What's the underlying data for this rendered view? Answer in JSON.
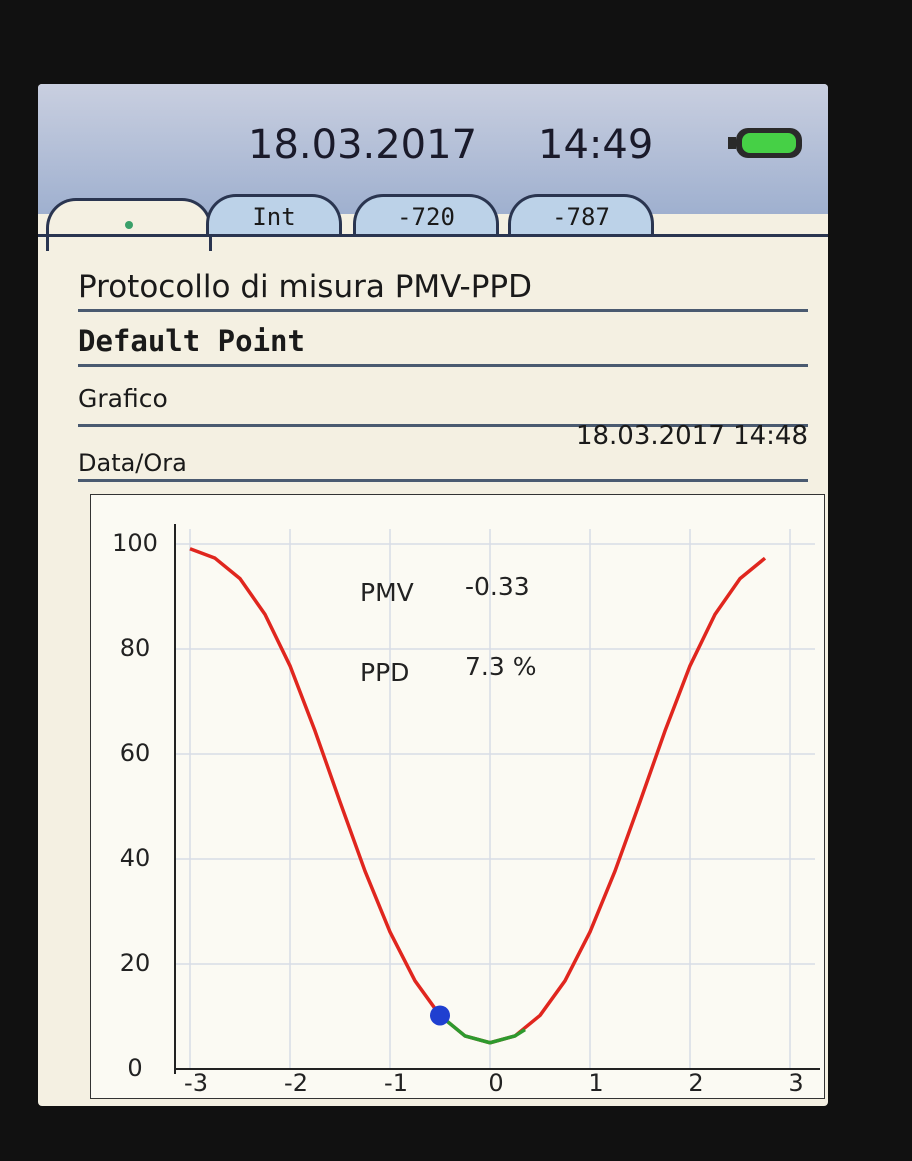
{
  "header": {
    "date": "18.03.2017",
    "time": "14:49"
  },
  "tabs": [
    "Int",
    "-720",
    "-787"
  ],
  "title": "Protocollo di misura PMV-PPD",
  "point": "Default Point",
  "section": "Grafico",
  "datetime": {
    "label": "Data/Ora",
    "value": "18.03.2017 14:48"
  },
  "chart_data": {
    "type": "line",
    "xlim": [
      -3,
      3
    ],
    "xticks": [
      -3,
      -2,
      -1,
      0,
      1,
      2,
      3
    ],
    "ylim": [
      0,
      100
    ],
    "yticks": [
      0,
      20,
      40,
      60,
      80,
      100
    ],
    "grid": true,
    "series": [
      {
        "color": "#e0261e",
        "x": [
          -3,
          -2.75,
          -2.5,
          -2.25,
          -2,
          -1.75,
          -1.5,
          -1.25,
          -1,
          -0.75,
          -0.5,
          -0.25,
          0,
          0.25,
          0.5,
          0.75,
          1,
          1.25,
          1.5,
          1.75,
          2,
          2.25,
          2.5,
          2.75
        ],
        "values": [
          99.1,
          97.3,
          93.4,
          86.6,
          76.8,
          64.4,
          50.9,
          37.7,
          26.1,
          16.8,
          10.2,
          6.3,
          5,
          6.3,
          10.2,
          16.8,
          26.1,
          37.7,
          50.9,
          64.4,
          76.8,
          86.6,
          93.4,
          97.3
        ]
      },
      {
        "color": "#2e9a2e",
        "x": [
          -0.5,
          -0.25,
          0,
          0.25,
          0.35
        ],
        "values": [
          10.2,
          6.3,
          5,
          6.3,
          7.5
        ]
      }
    ],
    "marker": {
      "x": -0.5,
      "value": 10.2,
      "color": "#1f3fd0"
    },
    "annotations": [
      {
        "label": "PMV",
        "value": "-0.33"
      },
      {
        "label": "PPD",
        "value": "7.3 %"
      }
    ]
  }
}
